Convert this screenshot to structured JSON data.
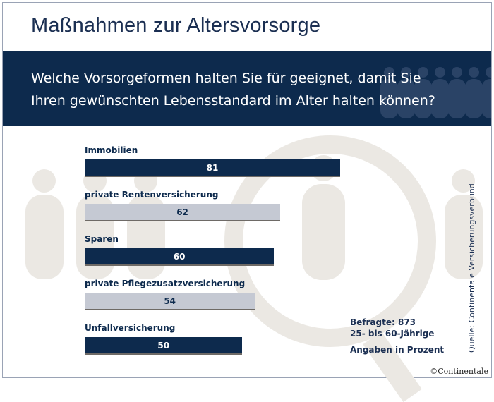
{
  "title": "Maßnahmen zur Altersvorsorge",
  "question": [
    "Welche Vorsorgeformen halten Sie für geeignet, damit Sie",
    "Ihren gewünschten Lebensstandard im Alter halten können?"
  ],
  "colors": {
    "dark": "#0d2a4d",
    "light": "#c5c9d3"
  },
  "chart_data": {
    "type": "bar",
    "orientation": "horizontal",
    "categories": [
      "Immobilien",
      "private Rentenversicherung",
      "Sparen",
      "private Pflegezusatzversicherung",
      "Unfallversicherung"
    ],
    "values": [
      81,
      62,
      60,
      54,
      50
    ],
    "labels": [
      "81",
      "62",
      "60",
      "54",
      "50"
    ],
    "bar_colors": [
      "#0d2a4d",
      "#c5c9d3",
      "#0d2a4d",
      "#c5c9d3",
      "#0d2a4d"
    ],
    "unit": "Prozent"
  },
  "notes": [
    "Befragte: 873",
    "25- bis 60-Jährige",
    "Angaben in Prozent"
  ],
  "source": "Quelle: Continentale Versicherungsverbund",
  "copyright": "©Continentale"
}
